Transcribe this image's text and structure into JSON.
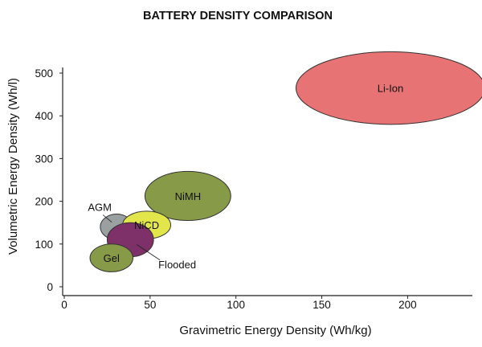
{
  "chart_data": {
    "type": "scatter",
    "title": "BATTERY DENSITY COMPARISON",
    "xlabel": "Gravimetric Energy Density (Wh/kg)",
    "ylabel": "Volumetric Energy Density (Wh/l)",
    "xlim": [
      0,
      240
    ],
    "ylim": [
      0,
      570
    ],
    "xticks": [
      0,
      50,
      100,
      150,
      200
    ],
    "yticks": [
      0,
      100,
      200,
      300,
      400,
      500
    ],
    "grid": false,
    "series": [
      {
        "name": "Li-Ion",
        "x_range": [
          135,
          245
        ],
        "y_range": [
          380,
          550
        ],
        "color": "#e87374",
        "label_position": "inside"
      },
      {
        "name": "NiMH",
        "x_range": [
          47,
          97
        ],
        "y_range": [
          155,
          270
        ],
        "color": "#879a48",
        "label_position": "inside"
      },
      {
        "name": "AGM",
        "x_range": [
          21,
          40
        ],
        "y_range": [
          110,
          170
        ],
        "color": "#9aa0a0",
        "label_position": "outside-left"
      },
      {
        "name": "NiCD",
        "x_range": [
          34,
          62
        ],
        "y_range": [
          112,
          177
        ],
        "color": "#e3e64a",
        "label_position": "inside"
      },
      {
        "name": "Flooded",
        "x_range": [
          25,
          52
        ],
        "y_range": [
          70,
          150
        ],
        "color": "#7d3168",
        "label_position": "outside-right"
      },
      {
        "name": "Gel",
        "x_range": [
          15,
          40
        ],
        "y_range": [
          35,
          100
        ],
        "color": "#879a48",
        "label_position": "inside"
      }
    ]
  }
}
